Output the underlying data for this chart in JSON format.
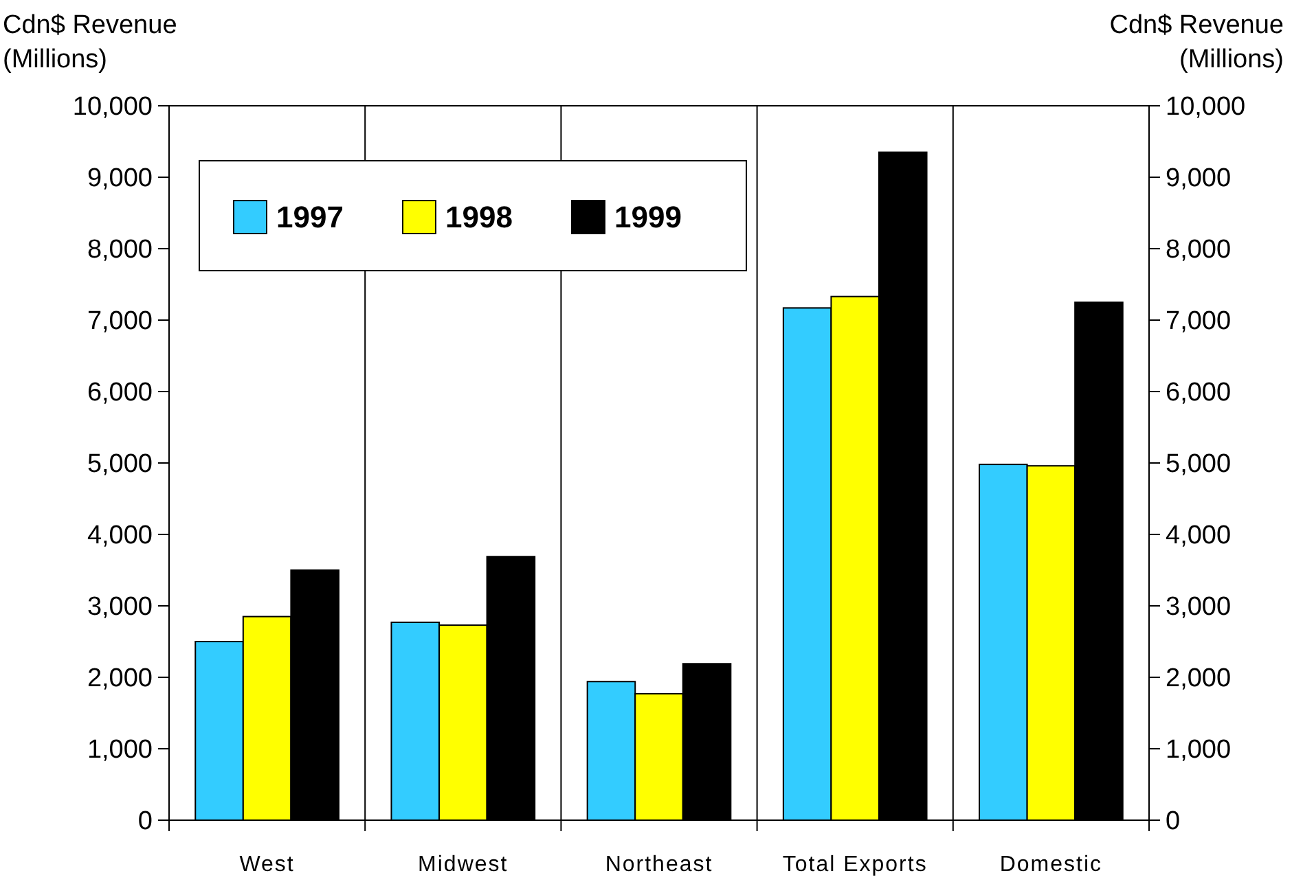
{
  "chart_data": {
    "type": "bar",
    "ylabel": "Cdn$ Revenue\n(Millions)",
    "y2label": "Cdn$ Revenue\n(Millions)",
    "categories": [
      "West",
      "Midwest",
      "Northeast",
      "Total Exports",
      "Domestic"
    ],
    "series": [
      {
        "name": "1997",
        "color": "#33ccff",
        "values": [
          2500,
          2770,
          1940,
          7170,
          4980
        ]
      },
      {
        "name": "1998",
        "color": "#ffff00",
        "values": [
          2850,
          2730,
          1770,
          7330,
          4960
        ]
      },
      {
        "name": "1999",
        "color": "#000000",
        "values": [
          3500,
          3690,
          2190,
          9350,
          7250
        ]
      }
    ],
    "ylim": [
      0,
      10000
    ],
    "yticks": [
      0,
      {
        "value": 1000,
        "label": "1,000"
      },
      {
        "value": 2000,
        "label": "2,000"
      },
      {
        "value": 3000,
        "label": "3,000"
      },
      {
        "value": 4000,
        "label": "4,000"
      },
      {
        "value": 5000,
        "label": "5,000"
      },
      {
        "value": 6000,
        "label": "6,000"
      },
      {
        "value": 7000,
        "label": "7,000"
      },
      {
        "value": 8000,
        "label": "8,000"
      },
      {
        "value": 9000,
        "label": "9,000"
      },
      {
        "value": 10000,
        "label": "10,000"
      }
    ],
    "y2lim": [
      0,
      10000
    ],
    "y2ticks": [
      0,
      {
        "value": 1000,
        "label": "1,000"
      },
      {
        "value": 2000,
        "label": "2,000"
      },
      {
        "value": 3000,
        "label": "3,000"
      },
      {
        "value": 4000,
        "label": "4,000"
      },
      {
        "value": 5000,
        "label": "5,000"
      },
      {
        "value": 6000,
        "label": "6,000"
      },
      {
        "value": 7000,
        "label": "7,000"
      },
      {
        "value": 8000,
        "label": "8,000"
      },
      {
        "value": 9000,
        "label": "9,000"
      },
      {
        "value": 10000,
        "label": "10,000"
      }
    ],
    "grid": "x",
    "legend": "top left"
  }
}
